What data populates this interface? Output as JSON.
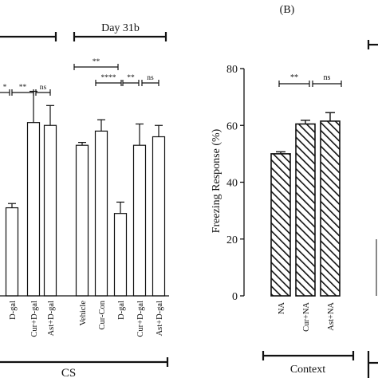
{
  "chart_data": [
    {
      "type": "bar",
      "panel_label": "",
      "title": "Day 31b",
      "xlabel": "CS",
      "ylabel": "",
      "ylim": [
        0,
        80
      ],
      "categories": [
        "D-gal",
        "Cur+D-gal",
        "Ast+D-gal",
        "Vehicle",
        "Cur-Con",
        "D-gal",
        "Cur+D-gal",
        "Ast+D-gal"
      ],
      "values": [
        31,
        61,
        60,
        53,
        58,
        29,
        53,
        56
      ],
      "errors": [
        1.5,
        11,
        7,
        1,
        4,
        4,
        7.5,
        4
      ],
      "fill": "white",
      "significance": [
        {
          "label": "*",
          "from": 0,
          "to": 0
        },
        {
          "label": "**",
          "from": 0,
          "to": 1
        },
        {
          "label": "ns",
          "from": 1,
          "to": 2
        },
        {
          "label": "**",
          "from": 3,
          "to": 4
        },
        {
          "label": "****",
          "from": 4,
          "to": 5
        },
        {
          "label": "**",
          "from": 5,
          "to": 6
        },
        {
          "label": "ns",
          "from": 6,
          "to": 7
        }
      ]
    },
    {
      "type": "bar",
      "panel_label": "(B)",
      "title": "",
      "xlabel": "Context",
      "ylabel": "Freezing Response (%)",
      "ylim": [
        0,
        80
      ],
      "yticks": [
        "0",
        "20",
        "40",
        "60",
        "80"
      ],
      "categories": [
        "NA",
        "Cur+NA",
        "Ast+NA"
      ],
      "values": [
        50,
        60.5,
        61.5
      ],
      "errors": [
        0.7,
        1.3,
        3
      ],
      "fill": "diagonal-hatch",
      "significance": [
        {
          "label": "**",
          "from": 0,
          "to": 1
        },
        {
          "label": "ns",
          "from": 1,
          "to": 2
        }
      ]
    }
  ]
}
